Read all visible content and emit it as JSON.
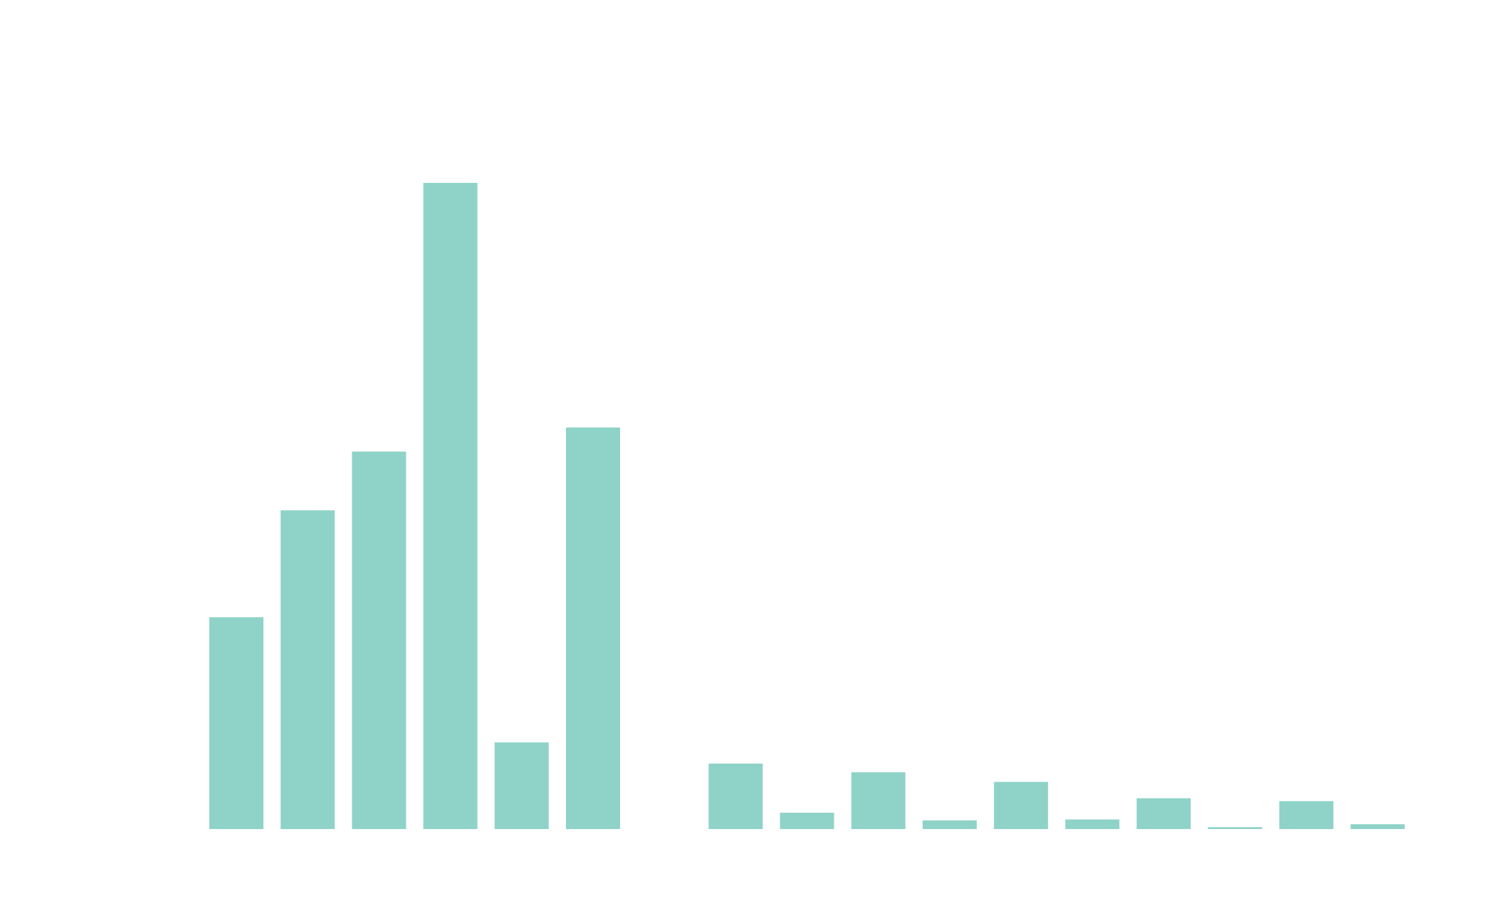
{
  "chart_data": {
    "type": "bar",
    "categories": [
      "",
      "",
      "",
      "",
      "",
      "",
      "",
      "",
      "",
      "",
      "",
      "",
      "",
      "",
      "",
      "",
      ""
    ],
    "values": [
      220,
      331,
      392,
      671,
      90,
      417,
      null,
      68,
      17,
      59,
      9,
      49,
      10,
      32,
      2,
      29,
      5
    ],
    "ylim": [
      0,
      671
    ],
    "grid": false,
    "bar_color": "#8fd3c8"
  }
}
